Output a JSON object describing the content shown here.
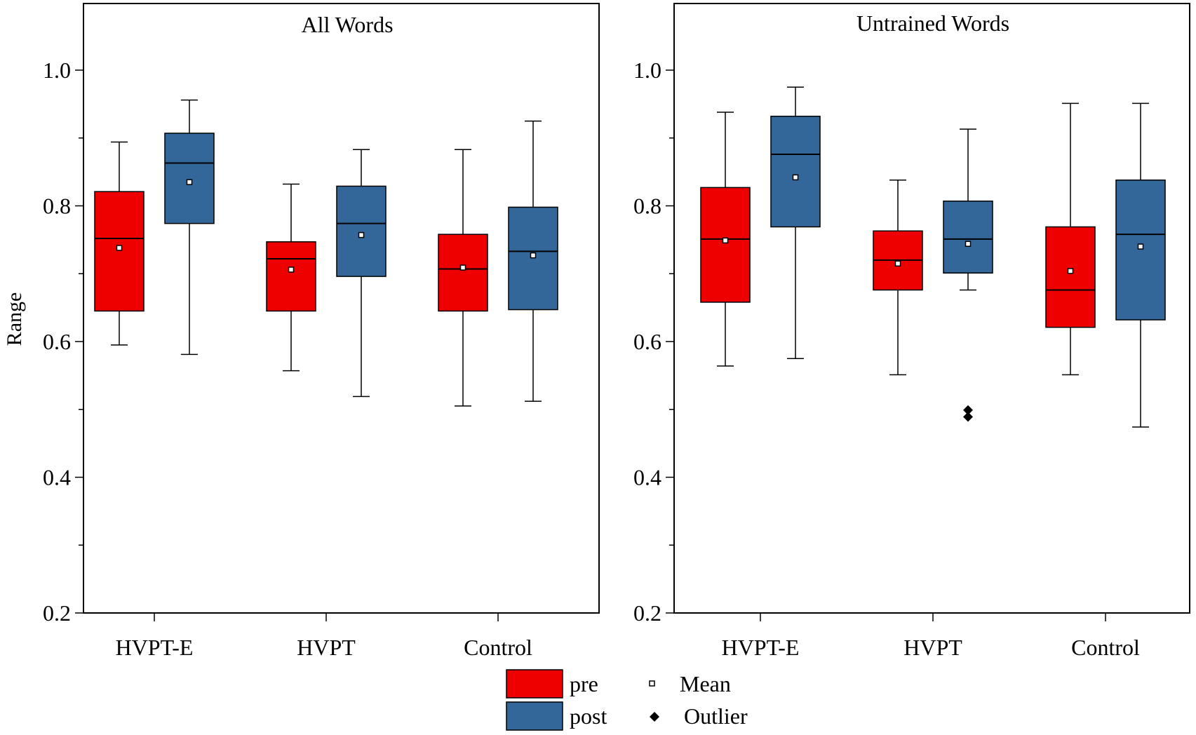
{
  "chart_data": {
    "type": "boxplot",
    "ylabel": "Range",
    "ylim": [
      0.2,
      1.1
    ],
    "yticks": [
      "0.2",
      "0.4",
      "0.6",
      "0.8",
      "1.0"
    ],
    "categories": [
      "HVPT-E",
      "HVPT",
      "Control"
    ],
    "colors": {
      "pre": "#ee0000",
      "post": "#336699"
    },
    "legend": {
      "pre": "pre",
      "post": "post",
      "mean": "Mean",
      "outlier": "Outlier",
      "mean_icon": "mean-square-icon",
      "outlier_icon": "outlier-diamond-icon"
    },
    "panels": [
      {
        "title": "All Words",
        "boxes": [
          {
            "group": "HVPT-E",
            "series": "pre",
            "min": 0.595,
            "q1": 0.645,
            "median": 0.752,
            "q3": 0.821,
            "max": 0.894,
            "mean": 0.738,
            "outliers": []
          },
          {
            "group": "HVPT-E",
            "series": "post",
            "min": 0.581,
            "q1": 0.774,
            "median": 0.863,
            "q3": 0.907,
            "max": 0.956,
            "mean": 0.835,
            "outliers": []
          },
          {
            "group": "HVPT",
            "series": "pre",
            "min": 0.557,
            "q1": 0.645,
            "median": 0.722,
            "q3": 0.747,
            "max": 0.832,
            "mean": 0.706,
            "outliers": []
          },
          {
            "group": "HVPT",
            "series": "post",
            "min": 0.519,
            "q1": 0.696,
            "median": 0.774,
            "q3": 0.829,
            "max": 0.883,
            "mean": 0.757,
            "outliers": []
          },
          {
            "group": "Control",
            "series": "pre",
            "min": 0.505,
            "q1": 0.645,
            "median": 0.707,
            "q3": 0.758,
            "max": 0.883,
            "mean": 0.709,
            "outliers": []
          },
          {
            "group": "Control",
            "series": "post",
            "min": 0.512,
            "q1": 0.647,
            "median": 0.733,
            "q3": 0.798,
            "max": 0.925,
            "mean": 0.727,
            "outliers": []
          }
        ]
      },
      {
        "title": "Untrained Words",
        "boxes": [
          {
            "group": "HVPT-E",
            "series": "pre",
            "min": 0.564,
            "q1": 0.658,
            "median": 0.751,
            "q3": 0.827,
            "max": 0.938,
            "mean": 0.749,
            "outliers": []
          },
          {
            "group": "HVPT-E",
            "series": "post",
            "min": 0.575,
            "q1": 0.769,
            "median": 0.876,
            "q3": 0.932,
            "max": 0.975,
            "mean": 0.842,
            "outliers": []
          },
          {
            "group": "HVPT",
            "series": "pre",
            "min": 0.551,
            "q1": 0.676,
            "median": 0.72,
            "q3": 0.763,
            "max": 0.838,
            "mean": 0.715,
            "outliers": []
          },
          {
            "group": "HVPT",
            "series": "post",
            "min": 0.676,
            "q1": 0.701,
            "median": 0.751,
            "q3": 0.807,
            "max": 0.913,
            "mean": 0.744,
            "outliers": [
              0.499,
              0.489
            ]
          },
          {
            "group": "Control",
            "series": "pre",
            "min": 0.551,
            "q1": 0.621,
            "median": 0.676,
            "q3": 0.769,
            "max": 0.951,
            "mean": 0.704,
            "outliers": []
          },
          {
            "group": "Control",
            "series": "post",
            "min": 0.474,
            "q1": 0.632,
            "median": 0.758,
            "q3": 0.838,
            "max": 0.951,
            "mean": 0.74,
            "outliers": []
          }
        ]
      }
    ]
  }
}
